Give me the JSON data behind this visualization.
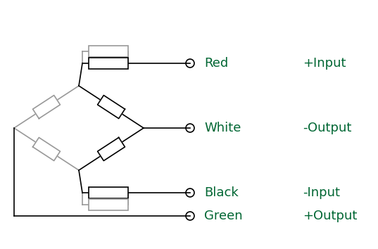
{
  "bg_color": "#ffffff",
  "line_color": "#000000",
  "gray_color": "#999999",
  "green_color": "#006633",
  "labels": [
    "Red",
    "White",
    "Black",
    "Green"
  ],
  "right_labels": [
    "+Input",
    "-Output",
    "-Input",
    "+Output"
  ],
  "font_size": 13
}
